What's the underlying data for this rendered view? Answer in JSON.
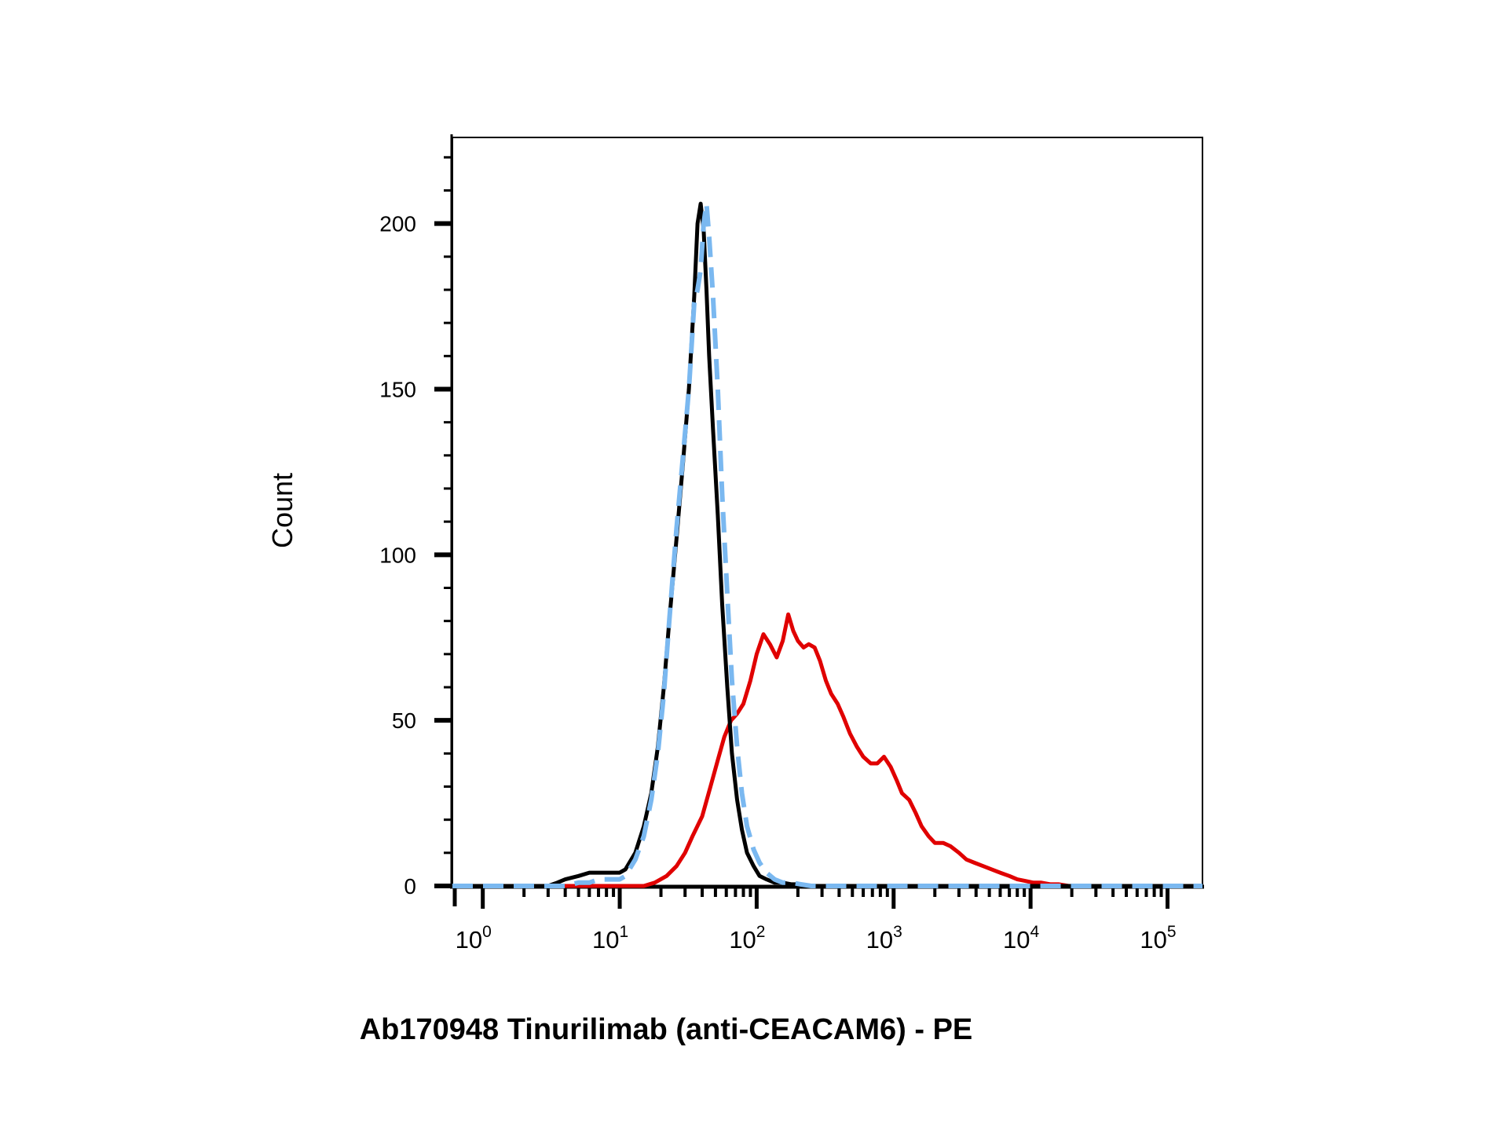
{
  "chart_data": {
    "type": "line",
    "title": "",
    "xlabel": "Ab170948 Tinurilimab (anti-CEACAM6) - PE",
    "ylabel": "Count",
    "x_scale": "log",
    "xlim": [
      0.6,
      180000
    ],
    "ylim": [
      0,
      226
    ],
    "y_ticks": [
      0,
      50,
      100,
      150,
      200
    ],
    "y_tick_labels": [
      "0",
      "50",
      "100",
      "150",
      "200"
    ],
    "x_ticks": [
      1,
      10,
      100,
      1000,
      10000,
      100000
    ],
    "x_tick_labels": [
      {
        "base": "10",
        "exp": "0"
      },
      {
        "base": "10",
        "exp": "1"
      },
      {
        "base": "10",
        "exp": "2"
      },
      {
        "base": "10",
        "exp": "3"
      },
      {
        "base": "10",
        "exp": "4"
      },
      {
        "base": "10",
        "exp": "5"
      }
    ],
    "grid": false,
    "legend": false,
    "series": [
      {
        "color": "#e00000",
        "style": "solid",
        "x": [
          0.6,
          10,
          15,
          18,
          22,
          26,
          30,
          34,
          40,
          46,
          52,
          58,
          65,
          72,
          80,
          90,
          100,
          112,
          125,
          140,
          155,
          170,
          185,
          200,
          220,
          240,
          265,
          290,
          320,
          350,
          390,
          430,
          480,
          540,
          600,
          680,
          760,
          850,
          950,
          1050,
          1150,
          1300,
          1450,
          1600,
          1800,
          2000,
          2300,
          2600,
          3000,
          3400,
          3900,
          4500,
          5200,
          6000,
          7000,
          8000,
          9200,
          10500,
          12000,
          14000,
          16000,
          19000,
          22000,
          26000,
          40000,
          180000
        ],
        "y": [
          0,
          0,
          0,
          1,
          3,
          6,
          10,
          15,
          21,
          30,
          38,
          45,
          50,
          52,
          55,
          62,
          70,
          76,
          73,
          69,
          74,
          82,
          77,
          74,
          72,
          73,
          72,
          68,
          62,
          58,
          55,
          51,
          46,
          42,
          39,
          37,
          37,
          39,
          36,
          32,
          28,
          26,
          22,
          18,
          15,
          13,
          13,
          12,
          10,
          8,
          7,
          6,
          5,
          4,
          3,
          2,
          1.5,
          1,
          1,
          0.5,
          0.5,
          0,
          0,
          0,
          0,
          0
        ]
      },
      {
        "color": "#000000",
        "style": "solid",
        "x": [
          0.6,
          3.0,
          3.5,
          4.0,
          5.0,
          6.0,
          7.0,
          8.0,
          9.0,
          10.0,
          11.0,
          13.0,
          15.0,
          17.0,
          19.0,
          21.0,
          23.0,
          26.0,
          29.0,
          32.0,
          35.0,
          37.0,
          39.0,
          41.0,
          43.0,
          45.0,
          48.0,
          52.0,
          56.0,
          61.0,
          66.0,
          72.0,
          78.0,
          85.0,
          95.0,
          105.0,
          118.0,
          135.0,
          155.0,
          180.0,
          210.0,
          250.0,
          300.0,
          400.0,
          600.0,
          1000.0,
          2000.0,
          5000.0,
          20000.0,
          180000.0
        ],
        "y": [
          0,
          0,
          1,
          2,
          3,
          4,
          4,
          4,
          4,
          4,
          5,
          10,
          18,
          28,
          42,
          60,
          80,
          105,
          128,
          150,
          178,
          200,
          206,
          198,
          180,
          160,
          138,
          112,
          85,
          60,
          40,
          26,
          17,
          10,
          6,
          3,
          2,
          1,
          1,
          0.5,
          0.5,
          0,
          0,
          0,
          0,
          0,
          0,
          0,
          0,
          0
        ]
      },
      {
        "color": "#7ab8f0",
        "style": "dashed",
        "x": [
          0.6,
          3.0,
          4.0,
          5.0,
          6.0,
          7.0,
          8.0,
          9.0,
          10.0,
          11.0,
          13.0,
          15.0,
          17.0,
          19.0,
          21.0,
          23.0,
          26.0,
          29.0,
          32.0,
          35.0,
          37.0,
          39.0,
          41.0,
          43.0,
          45.0,
          48.0,
          52.0,
          56.0,
          61.0,
          66.0,
          72.0,
          78.0,
          85.0,
          95.0,
          105.0,
          118.0,
          135.0,
          155.0,
          180.0,
          210.0,
          250.0,
          300.0,
          400.0,
          600.0,
          1000.0,
          2000.0,
          5000.0,
          20000.0,
          180000.0
        ],
        "y": [
          0,
          0,
          0,
          1,
          1,
          2,
          2,
          2,
          2,
          3,
          8,
          15,
          26,
          40,
          58,
          80,
          108,
          130,
          150,
          176,
          180,
          186,
          200,
          206,
          196,
          178,
          150,
          118,
          88,
          62,
          42,
          28,
          18,
          11,
          7,
          4,
          2,
          1,
          1,
          0.5,
          0,
          0,
          0,
          0,
          0,
          0,
          0,
          0,
          0
        ]
      }
    ]
  }
}
